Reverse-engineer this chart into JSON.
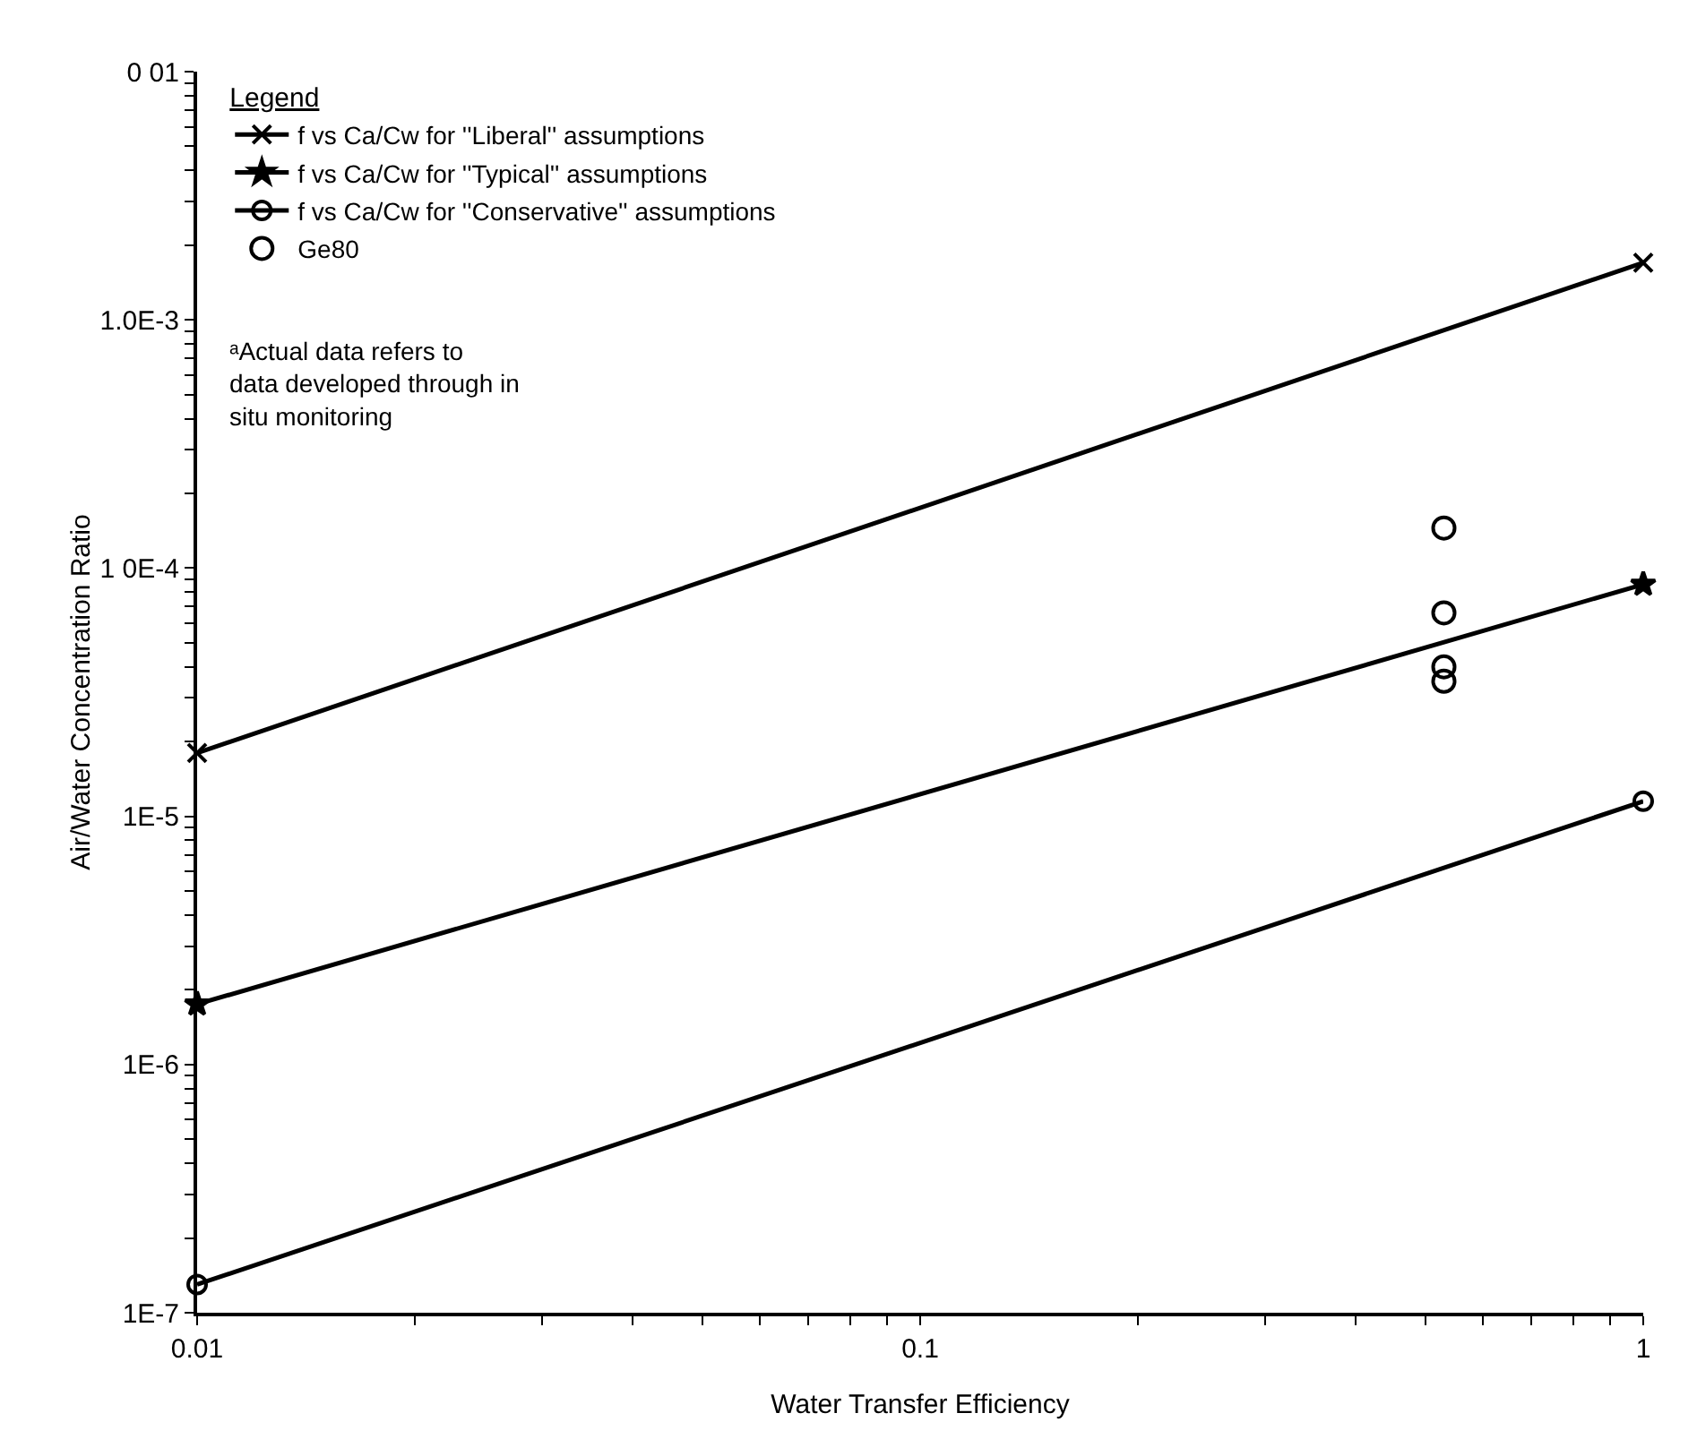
{
  "chart_data": {
    "type": "line",
    "xlabel": "Water Transfer Efficiency",
    "ylabel": "Air/Water Concentration Ratio",
    "legend_title": "Legend",
    "log": "xy",
    "grid": false,
    "legend": "top left",
    "xlim": [
      0.01,
      1
    ],
    "ylim": [
      1e-07,
      0.01
    ],
    "xticks": [
      0.01,
      0.1,
      1
    ],
    "yticks": [
      {
        "value": 1e-07,
        "label": "1E-7"
      },
      {
        "value": 1e-06,
        "label": "1E-6"
      },
      {
        "value": 1e-05,
        "label": "1E-5"
      },
      {
        "value": 0.0001,
        "label": "1 0E-4"
      },
      {
        "value": 0.001,
        "label": "1.0E-3"
      },
      {
        "value": 0.01,
        "label": "0 01"
      }
    ],
    "series": [
      {
        "name": "f vs Ca/Cw for ''Liberal'' assumptions",
        "color": "#000000",
        "marker": "cross",
        "x": [
          0.01,
          1
        ],
        "values": [
          1.8e-05,
          0.0017
        ]
      },
      {
        "name": "f vs Ca/Cw for ''Typical'' assumptions",
        "color": "#000000",
        "marker": "star",
        "x": [
          0.01,
          1
        ],
        "values": [
          1.75e-06,
          8.6e-05
        ]
      },
      {
        "name": "f vs Ca/Cw for ''Conservative'' assumptions",
        "color": "#000000",
        "marker": "circle",
        "x": [
          0.01,
          1
        ],
        "values": [
          1.3e-07,
          1.15e-05
        ]
      },
      {
        "name": "Ge80",
        "type": "scatter",
        "color": "#000000",
        "marker": "circle",
        "x": [
          0.53,
          0.53,
          0.53,
          0.53
        ],
        "values": [
          0.000145,
          6.6e-05,
          4e-05,
          3.5e-05
        ]
      }
    ],
    "annotations": [
      "ᵃActual data refers to data developed through in situ monitoring"
    ]
  }
}
